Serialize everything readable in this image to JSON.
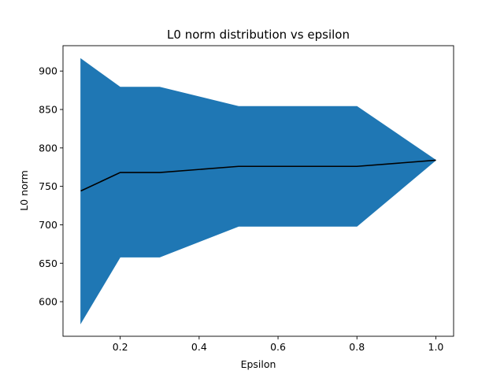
{
  "chart_data": {
    "type": "area",
    "title": "L0 norm distribution vs epsilon",
    "xlabel": "Epsilon",
    "ylabel": "L0 norm",
    "x": [
      0.1,
      0.2,
      0.3,
      0.5,
      0.8,
      1.0
    ],
    "series": [
      {
        "type": "line",
        "values": [
          744,
          768,
          768,
          776,
          776,
          784
        ]
      },
      {
        "type": "band",
        "lower": [
          572,
          658,
          658,
          698,
          698,
          784
        ],
        "upper": [
          916,
          879,
          879,
          854,
          854,
          784
        ]
      }
    ],
    "xlim": [
      0.055,
      1.045
    ],
    "ylim": [
      555,
      933
    ],
    "xticks": [
      0.2,
      0.4,
      0.6,
      0.8,
      1.0
    ],
    "xtick_labels": [
      "0.2",
      "0.4",
      "0.6",
      "0.8",
      "1.0"
    ],
    "yticks": [
      600,
      650,
      700,
      750,
      800,
      850,
      900
    ],
    "ytick_labels": [
      "600",
      "650",
      "700",
      "750",
      "800",
      "850",
      "900"
    ],
    "grid": false,
    "colors": {
      "band": "#1f77b4",
      "line": "#000000"
    }
  }
}
